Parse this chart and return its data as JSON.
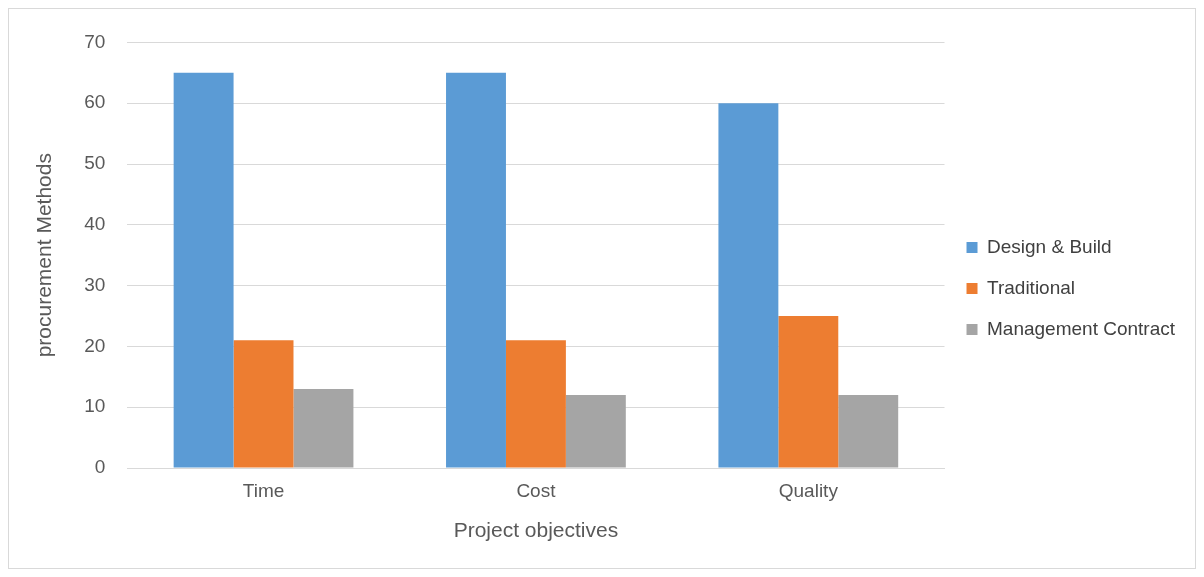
{
  "chart_data": {
    "type": "bar",
    "xlabel": "Project objectives",
    "ylabel": "procurement Methods",
    "categories": [
      "Time",
      "Cost",
      "Quality"
    ],
    "series": [
      {
        "name": "Design & Build",
        "color": "#5b9bd5",
        "values": [
          65,
          65,
          60
        ]
      },
      {
        "name": "Traditional",
        "color": "#ed7d31",
        "values": [
          21,
          21,
          25
        ]
      },
      {
        "name": "Management Contract",
        "color": "#a5a5a5",
        "values": [
          13,
          12,
          12
        ]
      }
    ],
    "ylim": [
      0,
      70
    ],
    "yticks": [
      0,
      10,
      20,
      30,
      40,
      50,
      60,
      70
    ],
    "grid": "y",
    "legend": "right"
  }
}
